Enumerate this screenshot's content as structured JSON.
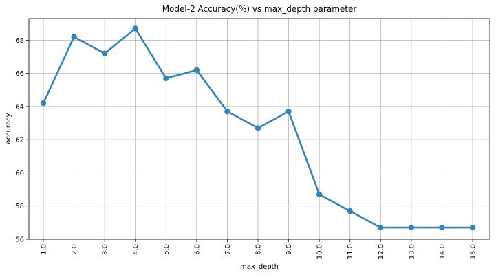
{
  "chart_data": {
    "type": "line",
    "title": "Model-2 Accuracy(%) vs max_depth parameter",
    "xlabel": "max_depth",
    "ylabel": "accuracy",
    "categories": [
      "1.0",
      "2.0",
      "3.0",
      "4.0",
      "5.0",
      "6.0",
      "7.0",
      "8.0",
      "9.0",
      "10.0",
      "11.0",
      "12.0",
      "13.0",
      "14.0",
      "15.0"
    ],
    "series": [
      {
        "values": [
          64.2,
          68.2,
          67.2,
          68.7,
          65.7,
          66.2,
          63.7,
          62.7,
          63.7,
          58.7,
          57.7,
          56.7,
          56.7,
          56.7,
          56.7
        ],
        "color": "#3182bd",
        "marker": "circle"
      }
    ],
    "ylim": [
      56,
      69.3
    ],
    "yticks": [
      56,
      58,
      60,
      62,
      64,
      66,
      68
    ],
    "xtick_rotation": "vertical",
    "grid": true,
    "legend": "none"
  }
}
